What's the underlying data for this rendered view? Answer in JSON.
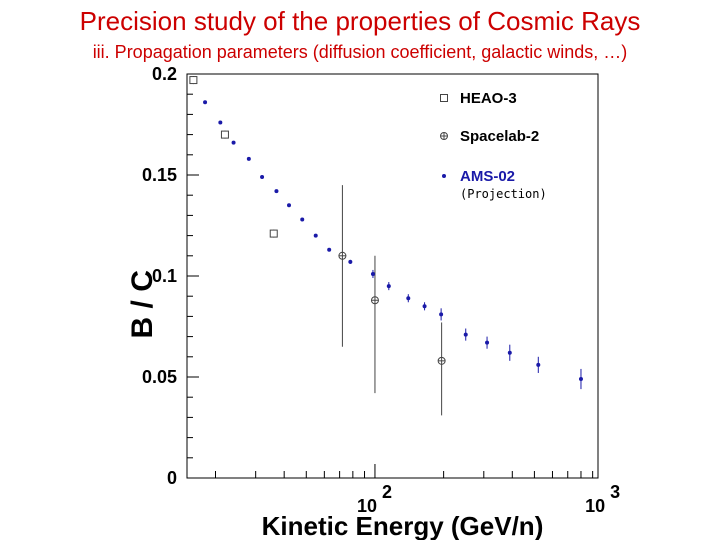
{
  "title": "Precision study of the properties of Cosmic Rays",
  "subtitle": "iii. Propagation parameters (diffusion coefficient, galactic winds, …)",
  "colors": {
    "title": "#cc0000",
    "ams": "#1a1aa8",
    "spacelab": "#444444",
    "heao": "#444444",
    "text": "#000000"
  },
  "chart_data": {
    "type": "scatter",
    "xlabel": "Kinetic Energy (GeV/n)",
    "ylabel": "B / C",
    "xscale": "log",
    "xlim": [
      15,
      950
    ],
    "ylim": [
      0,
      0.2
    ],
    "yticks": [
      {
        "value": 0,
        "label": "0"
      },
      {
        "value": 0.05,
        "label": "0.05"
      },
      {
        "value": 0.1,
        "label": "0.1"
      },
      {
        "value": 0.15,
        "label": "0.15"
      },
      {
        "value": 0.2,
        "label": "0.2"
      }
    ],
    "xticks": [
      {
        "value": 100,
        "base": "10",
        "exp": "2"
      },
      {
        "value": 1000,
        "base": "10",
        "exp": "3"
      }
    ],
    "legend": {
      "position": "top-right",
      "entries": [
        {
          "key": "heao",
          "label": "HEAO-3"
        },
        {
          "key": "spacelab",
          "label": "Spacelab-2"
        },
        {
          "key": "ams",
          "label": "AMS-02",
          "note": "(Projection)"
        }
      ]
    },
    "series": [
      {
        "name": "HEAO-3",
        "key": "heao",
        "marker": "open-square",
        "points": [
          {
            "x": 16,
            "y": 0.197,
            "err": 0.002
          },
          {
            "x": 22,
            "y": 0.17,
            "err": 0.002
          },
          {
            "x": 36,
            "y": 0.121,
            "err": 0.002
          }
        ]
      },
      {
        "name": "Spacelab-2",
        "key": "spacelab",
        "marker": "open-circle-cross",
        "points": [
          {
            "x": 72,
            "y": 0.11,
            "err_lo": 0.045,
            "err_hi": 0.035
          },
          {
            "x": 100,
            "y": 0.088,
            "err_lo": 0.046,
            "err_hi": 0.022
          },
          {
            "x": 196,
            "y": 0.058,
            "err_lo": 0.027,
            "err_hi": 0.019
          }
        ]
      },
      {
        "name": "AMS-02",
        "key": "ams",
        "marker": "filled-circle",
        "points": [
          {
            "x": 18,
            "y": 0.186,
            "err": 0
          },
          {
            "x": 21,
            "y": 0.176,
            "err": 0
          },
          {
            "x": 24,
            "y": 0.166,
            "err": 0
          },
          {
            "x": 28,
            "y": 0.158,
            "err": 0
          },
          {
            "x": 32,
            "y": 0.149,
            "err": 0
          },
          {
            "x": 37,
            "y": 0.142,
            "err": 0
          },
          {
            "x": 42,
            "y": 0.135,
            "err": 0
          },
          {
            "x": 48,
            "y": 0.128,
            "err": 0
          },
          {
            "x": 55,
            "y": 0.12,
            "err": 0
          },
          {
            "x": 63,
            "y": 0.113,
            "err": 0
          },
          {
            "x": 78,
            "y": 0.107,
            "err": 0.001
          },
          {
            "x": 98,
            "y": 0.101,
            "err": 0.002
          },
          {
            "x": 115,
            "y": 0.095,
            "err": 0.002
          },
          {
            "x": 140,
            "y": 0.089,
            "err": 0.002
          },
          {
            "x": 165,
            "y": 0.085,
            "err": 0.002
          },
          {
            "x": 195,
            "y": 0.081,
            "err": 0.003
          },
          {
            "x": 250,
            "y": 0.071,
            "err": 0.003
          },
          {
            "x": 310,
            "y": 0.067,
            "err": 0.003
          },
          {
            "x": 390,
            "y": 0.062,
            "err": 0.004
          },
          {
            "x": 520,
            "y": 0.056,
            "err": 0.004
          },
          {
            "x": 800,
            "y": 0.049,
            "err": 0.005
          }
        ]
      }
    ]
  }
}
